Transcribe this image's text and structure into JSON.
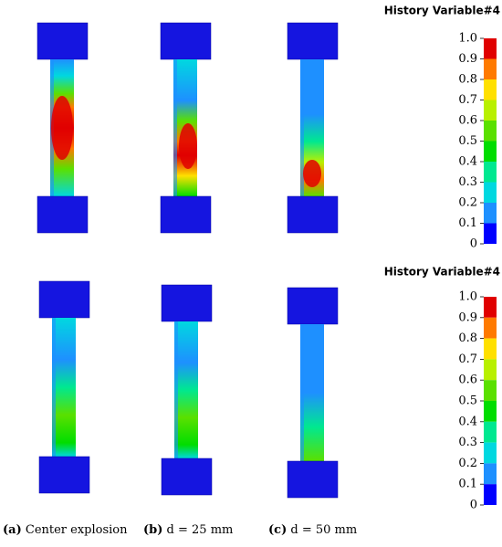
{
  "colorbars": [
    {
      "title": "History Variable#4",
      "ticks": [
        {
          "value": 1,
          "label": "1.0"
        },
        0.9,
        0.8,
        0.7,
        0.6,
        0.5,
        0.4,
        0.3,
        0.2,
        0.1,
        0
      ],
      "colors": [
        "#e00000",
        "#ff7a00",
        "#ffe000",
        "#b8f000",
        "#5ae000",
        "#00dd00",
        "#00e890",
        "#00d8e0",
        "#1e90ff",
        "#0000ff"
      ]
    },
    {
      "title": "History Variable#4",
      "ticks": [
        {
          "value": 1,
          "label": "1.0"
        },
        0.9,
        0.8,
        0.7,
        0.6,
        0.5,
        0.4,
        0.3,
        0.2,
        0.1,
        0
      ],
      "colors": [
        "#e00000",
        "#ff7a00",
        "#ffe000",
        "#b8f000",
        "#5ae000",
        "#00dd00",
        "#00e890",
        "#00d8e0",
        "#1e90ff",
        "#0000ff"
      ]
    }
  ],
  "captions": [
    {
      "label": "(a)",
      "text": "Center explosion"
    },
    {
      "label": "(b)",
      "text": "d = 25 mm"
    },
    {
      "label": "(c)",
      "text": "d = 50 mm"
    }
  ]
}
